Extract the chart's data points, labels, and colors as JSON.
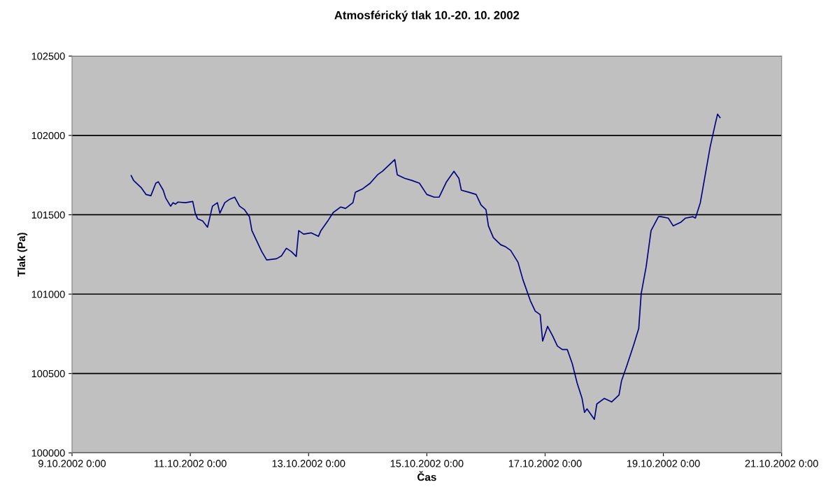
{
  "chart_data": {
    "type": "line",
    "title": "Atmosférický tlak 10.-20. 10. 2002",
    "xlabel": "Čas",
    "ylabel": "Tlak (Pa)",
    "xlim": [
      "2002-10-09T00:00",
      "2002-10-21T00:00"
    ],
    "xticks": [
      {
        "value": "2002-10-09T00:00",
        "label": "9.10.2002 0:00"
      },
      {
        "value": "2002-10-11T00:00",
        "label": "11.10.2002 0:00"
      },
      {
        "value": "2002-10-13T00:00",
        "label": "13.10.2002 0:00"
      },
      {
        "value": "2002-10-15T00:00",
        "label": "15.10.2002 0:00"
      },
      {
        "value": "2002-10-17T00:00",
        "label": "17.10.2002 0:00"
      },
      {
        "value": "2002-10-19T00:00",
        "label": "19.10.2002 0:00"
      },
      {
        "value": "2002-10-21T00:00",
        "label": "21.10.2002 0:00"
      }
    ],
    "ylim": [
      100000,
      102500
    ],
    "yticks": [
      100000,
      100500,
      101000,
      101500,
      102000,
      102500
    ],
    "grid": "y",
    "marker": "none",
    "line_style": "solid",
    "x": [
      "2002-10-10T00:00",
      "2002-10-10T01:00",
      "2002-10-10T04:00",
      "2002-10-10T06:00",
      "2002-10-10T08:00",
      "2002-10-10T10:00",
      "2002-10-10T11:00",
      "2002-10-10T13:00",
      "2002-10-10T14:00",
      "2002-10-10T16:00",
      "2002-10-10T17:00",
      "2002-10-10T18:00",
      "2002-10-10T19:00",
      "2002-10-10T22:00",
      "2002-10-11T01:00",
      "2002-10-11T02:00",
      "2002-10-11T03:00",
      "2002-10-11T05:00",
      "2002-10-11T07:00",
      "2002-10-11T08:00",
      "2002-10-11T09:00",
      "2002-10-11T11:00",
      "2002-10-11T12:00",
      "2002-10-11T14:00",
      "2002-10-11T16:00",
      "2002-10-11T18:00",
      "2002-10-11T20:00",
      "2002-10-11T22:00",
      "2002-10-12T00:00",
      "2002-10-12T01:00",
      "2002-10-12T03:00",
      "2002-10-12T05:00",
      "2002-10-12T07:00",
      "2002-10-12T11:00",
      "2002-10-12T13:00",
      "2002-10-12T15:00",
      "2002-10-12T17:00",
      "2002-10-12T19:00",
      "2002-10-12T20:00",
      "2002-10-12T22:00",
      "2002-10-13T01:00",
      "2002-10-13T04:00",
      "2002-10-13T05:00",
      "2002-10-13T08:00",
      "2002-10-13T10:00",
      "2002-10-13T13:00",
      "2002-10-13T15:00",
      "2002-10-13T18:00",
      "2002-10-13T19:00",
      "2002-10-13T22:00",
      "2002-10-14T01:00",
      "2002-10-14T04:00",
      "2002-10-14T06:00",
      "2002-10-14T09:00",
      "2002-10-14T11:00",
      "2002-10-14T12:00",
      "2002-10-14T15:00",
      "2002-10-14T18:00",
      "2002-10-14T21:00",
      "2002-10-15T00:00",
      "2002-10-15T03:00",
      "2002-10-15T05:00",
      "2002-10-15T08:00",
      "2002-10-15T11:00",
      "2002-10-15T13:00",
      "2002-10-15T14:00",
      "2002-10-15T17:00",
      "2002-10-15T20:00",
      "2002-10-15T22:00",
      "2002-10-16T00:00",
      "2002-10-16T01:00",
      "2002-10-16T03:00",
      "2002-10-16T06:00",
      "2002-10-16T08:00",
      "2002-10-16T10:00",
      "2002-10-16T13:00",
      "2002-10-16T15:00",
      "2002-10-16T18:00",
      "2002-10-16T20:00",
      "2002-10-16T22:00",
      "2002-10-16T23:00",
      "2002-10-17T01:00",
      "2002-10-17T03:00",
      "2002-10-17T05:00",
      "2002-10-17T07:00",
      "2002-10-17T09:00",
      "2002-10-17T11:00",
      "2002-10-17T13:00",
      "2002-10-17T15:00",
      "2002-10-17T16:00",
      "2002-10-17T17:00",
      "2002-10-17T18:00",
      "2002-10-17T20:00",
      "2002-10-17T21:00",
      "2002-10-18T00:00",
      "2002-10-18T03:00",
      "2002-10-18T06:00",
      "2002-10-18T07:00",
      "2002-10-18T09:00",
      "2002-10-18T12:00",
      "2002-10-18T14:00",
      "2002-10-18T15:00",
      "2002-10-18T17:00",
      "2002-10-18T19:00",
      "2002-10-18T22:00",
      "2002-10-18T23:00",
      "2002-10-19T02:00",
      "2002-10-19T04:00",
      "2002-10-19T07:00",
      "2002-10-19T09:00",
      "2002-10-19T12:00",
      "2002-10-19T13:00",
      "2002-10-19T15:00",
      "2002-10-19T17:00",
      "2002-10-19T19:00",
      "2002-10-19T21:00",
      "2002-10-19T22:00",
      "2002-10-19T23:00"
    ],
    "series": [
      {
        "color": "#000080",
        "values": [
          101747,
          101716,
          101672,
          101628,
          101620,
          101699,
          101708,
          101655,
          101606,
          101554,
          101576,
          101567,
          101580,
          101576,
          101584,
          101510,
          101474,
          101461,
          101422,
          101488,
          101554,
          101576,
          101510,
          101576,
          101598,
          101611,
          101554,
          101532,
          101488,
          101400,
          101334,
          101268,
          101215,
          101223,
          101241,
          101289,
          101268,
          101237,
          101400,
          101378,
          101386,
          101364,
          101400,
          101466,
          101514,
          101549,
          101540,
          101576,
          101642,
          101664,
          101699,
          101752,
          101774,
          101818,
          101848,
          101752,
          101730,
          101716,
          101699,
          101628,
          101611,
          101611,
          101708,
          101774,
          101730,
          101655,
          101642,
          101628,
          101562,
          101532,
          101430,
          101356,
          101311,
          101298,
          101276,
          101201,
          101091,
          100959,
          100893,
          100871,
          100704,
          100797,
          100739,
          100673,
          100651,
          100651,
          100563,
          100440,
          100343,
          100255,
          100277,
          100255,
          100211,
          100308,
          100343,
          100321,
          100365,
          100453,
          100541,
          100682,
          100783,
          101003,
          101171,
          101400,
          101488,
          101488,
          101479,
          101430,
          101452,
          101479,
          101488,
          101479,
          101576,
          101752,
          101928,
          102068,
          102134,
          102112
        ]
      }
    ]
  }
}
